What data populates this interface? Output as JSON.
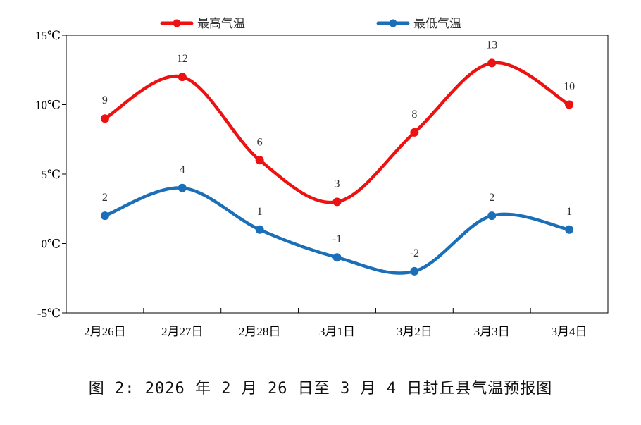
{
  "chart_data": {
    "type": "line",
    "categories": [
      "2月26日",
      "2月27日",
      "2月28日",
      "3月1日",
      "3月2日",
      "3月3日",
      "3月4日"
    ],
    "series": [
      {
        "name": "最高气温",
        "color": "#ee1111",
        "values": [
          9,
          12,
          6,
          3,
          8,
          13,
          10
        ]
      },
      {
        "name": "最低气温",
        "color": "#1a6fb8",
        "values": [
          2,
          4,
          1,
          -1,
          -2,
          2,
          1
        ]
      }
    ],
    "y_ticks": [
      "-5℃",
      "0℃",
      "5℃",
      "10℃",
      "15℃"
    ],
    "ylim": [
      -5,
      15
    ],
    "smooth": true,
    "grid": false,
    "legend_position": "top"
  },
  "caption": "图 2: 2026 年 2 月 26 日至 3 月 4 日封丘县气温预报图"
}
